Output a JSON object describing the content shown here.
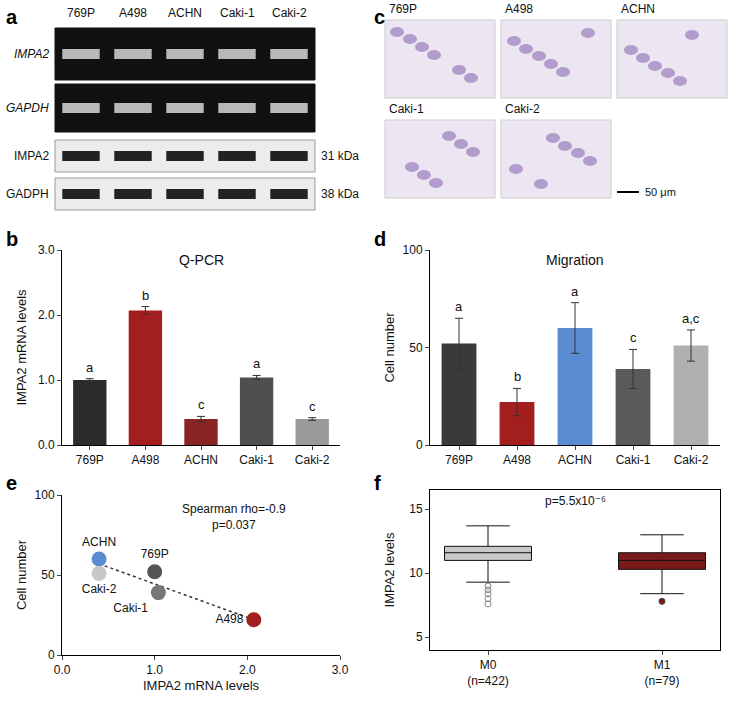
{
  "panel_a": {
    "panel": "a",
    "lanes": [
      "769P",
      "A498",
      "ACHN",
      "Caki-1",
      "Caki-2"
    ],
    "rows": [
      {
        "label": "IMPA2",
        "kind": "gel"
      },
      {
        "label": "GAPDH",
        "kind": "gel"
      },
      {
        "label": "IMPA2",
        "kind": "blot",
        "size": "31 kDa"
      },
      {
        "label": "GADPH",
        "kind": "blot",
        "size": "38 kDa"
      }
    ]
  },
  "panel_c": {
    "panel": "c",
    "images": [
      "769P",
      "A498",
      "ACHN",
      "Caki-1",
      "Caki-2"
    ],
    "scale_bar": "50 μm"
  },
  "chart_data": [
    {
      "panel": "b",
      "type": "bar",
      "title": "Q-PCR",
      "y_label": "IMPA2 mRNA levels",
      "categories": [
        "769P",
        "A498",
        "ACHN",
        "Caki-1",
        "Caki-2"
      ],
      "values": [
        1.0,
        2.07,
        0.4,
        1.04,
        0.4
      ],
      "errors": [
        0.02,
        0.06,
        0.04,
        0.03,
        0.02
      ],
      "letters": [
        "a",
        "b",
        "c",
        "a",
        "c"
      ],
      "colors": [
        "#2b2b2b",
        "#a31f1f",
        "#8a2424",
        "#4f4f4f",
        "#9a9a9a"
      ],
      "ylim": [
        0,
        3
      ],
      "yticks": [
        {
          "value": 0,
          "label": "0.0"
        },
        {
          "value": 1,
          "label": "1.0"
        },
        {
          "value": 2,
          "label": "2.0"
        },
        {
          "value": 3,
          "label": "3.0"
        }
      ]
    },
    {
      "panel": "d",
      "type": "bar",
      "title": "Migration",
      "y_label": "Cell number",
      "categories": [
        "769P",
        "A498",
        "ACHN",
        "Caki-1",
        "Caki-2"
      ],
      "values": [
        52,
        22,
        60,
        39,
        51
      ],
      "errors": [
        13,
        7,
        13,
        10,
        8
      ],
      "letters": [
        "a",
        "b",
        "a",
        "c",
        "a,c"
      ],
      "colors": [
        "#3a3a3a",
        "#a31f1f",
        "#5b8bd0",
        "#5a5a5a",
        "#b0b0b0"
      ],
      "ylim": [
        0,
        100
      ],
      "yticks": [
        0,
        50,
        100
      ]
    },
    {
      "panel": "e",
      "type": "scatter",
      "x_label": "IMPA2 mRNA levels",
      "y_label": "Cell number",
      "labels": [
        "769P",
        "A498",
        "ACHN",
        "Caki-1",
        "Caki-2"
      ],
      "x": [
        1.0,
        2.07,
        0.4,
        1.04,
        0.4
      ],
      "y": [
        52,
        22,
        60,
        39,
        51
      ],
      "colors": [
        "#555555",
        "#a31f1f",
        "#5b8bd0",
        "#777777",
        "#c8c8c8"
      ],
      "trend_line": {
        "x": [
          0.4,
          2.07
        ],
        "y": [
          57,
          22
        ]
      },
      "line_style": "dotted",
      "annotations": [
        "Spearman rho=-0.9",
        "p=0.037"
      ],
      "xlim": [
        0,
        3
      ],
      "xticks": [
        {
          "value": 0,
          "label": "0.0"
        },
        {
          "value": 1,
          "label": "1.0"
        },
        {
          "value": 2,
          "label": "2.0"
        },
        {
          "value": 3,
          "label": "3.0"
        }
      ],
      "ylim": [
        0,
        100
      ],
      "yticks": [
        0,
        50,
        100
      ]
    },
    {
      "panel": "f",
      "type": "box",
      "y_label": "IMPA2 levels",
      "categories": [
        "M0\n(n=422)",
        "M1\n(n=79)"
      ],
      "q1": [
        11.0,
        10.3
      ],
      "median": [
        11.6,
        11.0
      ],
      "q3": [
        12.1,
        11.6
      ],
      "lower_whisker": [
        9.3,
        8.4
      ],
      "upper_whisker": [
        13.7,
        13.0
      ],
      "outliers": [
        [
          9.0,
          8.7,
          8.4,
          8.0,
          7.6
        ],
        [
          7.8
        ]
      ],
      "colors": [
        "#c8c8c8",
        "#7a1a1a"
      ],
      "annotations": [
        "p=5.5x10⁻⁶"
      ],
      "ylim": [
        4,
        16.5
      ],
      "yticks": [
        5,
        10,
        15
      ]
    }
  ]
}
